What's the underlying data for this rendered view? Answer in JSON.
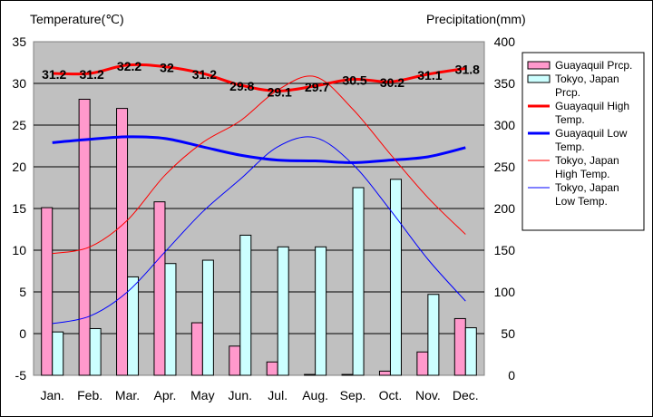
{
  "chart_data": {
    "type": "bar-line",
    "left_axis_title": "Temperature(℃)",
    "right_axis_title": "Precipitation(mm)",
    "left_axis": {
      "min": -5,
      "max": 35,
      "step": 5
    },
    "right_axis": {
      "min": 0,
      "max": 400,
      "step": 50
    },
    "categories": [
      "Jan.",
      "Feb.",
      "Mar.",
      "Apr.",
      "May",
      "Jun.",
      "Jul.",
      "Aug.",
      "Sep.",
      "Oct.",
      "Nov.",
      "Dec."
    ],
    "bar_series": [
      {
        "name": "Guayaquil Prcp.",
        "color": "#ff99cc",
        "axis": "right",
        "values": [
          201,
          331,
          320,
          208,
          63,
          35,
          16,
          1,
          1,
          5,
          28,
          68
        ]
      },
      {
        "name": "Tokyo, Japan Prcp.",
        "color": "#ccffff",
        "axis": "right",
        "values": [
          52,
          56,
          118,
          134,
          138,
          168,
          154,
          154,
          225,
          235,
          97,
          57
        ]
      }
    ],
    "line_series": [
      {
        "name": "Guayaquil High Temp.",
        "color": "#ff0000",
        "width": 3,
        "axis": "left",
        "values": [
          31.2,
          31.2,
          32.2,
          32,
          31.2,
          29.8,
          29.1,
          29.7,
          30.5,
          30.2,
          31.1,
          31.8
        ],
        "labels": [
          "31.2",
          "31.2",
          "32.2",
          "32",
          "31.2",
          "29.8",
          "29.1",
          "29.7",
          "30.5",
          "30.2",
          "31.1",
          "31.8"
        ]
      },
      {
        "name": "Guayaquil Low Temp.",
        "color": "#0000ff",
        "width": 3,
        "axis": "left",
        "values": [
          22.9,
          23.3,
          23.6,
          23.4,
          22.4,
          21.4,
          20.8,
          20.7,
          20.5,
          20.8,
          21.2,
          22.3
        ]
      },
      {
        "name": "Tokyo, Japan High Temp.",
        "color": "#ff0000",
        "width": 1,
        "axis": "left",
        "values": [
          9.6,
          10.4,
          13.6,
          19.0,
          22.9,
          25.5,
          29.2,
          30.8,
          26.9,
          21.5,
          16.3,
          11.9
        ]
      },
      {
        "name": "Tokyo, Japan Low Temp.",
        "color": "#0000ff",
        "width": 1,
        "axis": "left",
        "values": [
          1.2,
          2.1,
          5.0,
          9.8,
          14.6,
          18.5,
          22.4,
          23.5,
          20.3,
          14.8,
          8.9,
          3.9
        ]
      }
    ],
    "grid": true,
    "legend_position": "right",
    "plot_background": "#c0c0c0"
  }
}
